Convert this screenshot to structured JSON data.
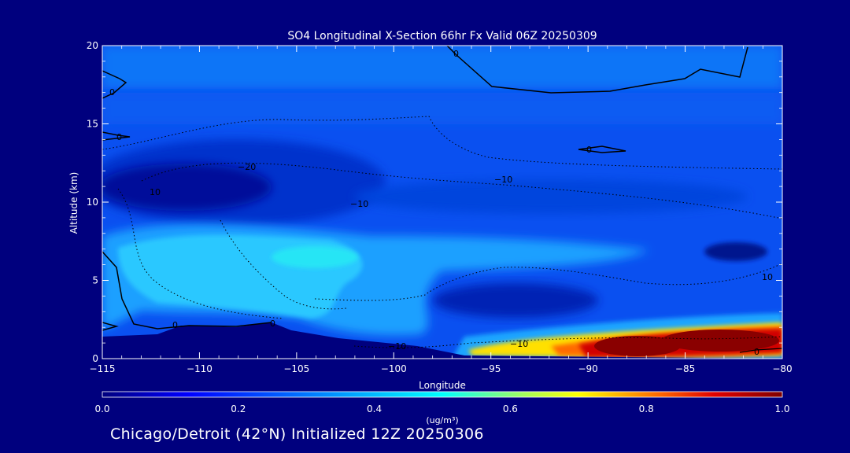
{
  "chart_data": {
    "type": "heatmap",
    "title": "SO4 Longitudinal X-Section 66hr  Fx Valid 06Z 20250309",
    "xlabel": "Longitude",
    "ylabel": "Altitude (km)",
    "xlim": [
      -115,
      -80
    ],
    "ylim": [
      0,
      20
    ],
    "x_ticks": [
      -115,
      -110,
      -105,
      -100,
      -95,
      -90,
      -85,
      -80
    ],
    "x_tick_labels": [
      "−115",
      "−110",
      "−105",
      "−100",
      "−95",
      "−90",
      "−85",
      "−80"
    ],
    "y_ticks": [
      0,
      5,
      10,
      15,
      20
    ],
    "y_tick_labels": [
      "0",
      "5",
      "10",
      "15",
      "20"
    ],
    "colorbar": {
      "min": 0.0,
      "max": 1.0,
      "ticks": [
        0.0,
        0.2,
        0.4,
        0.6,
        0.8,
        1.0
      ],
      "tick_labels": [
        "0.0",
        "0.2",
        "0.4",
        "0.6",
        "0.8",
        "1.0"
      ],
      "units": "(ug/m³)",
      "colors": [
        "#00007e",
        "#0000ff",
        "#0080ff",
        "#00ffff",
        "#80ff80",
        "#ffff00",
        "#ff8000",
        "#ff0000",
        "#7e0000"
      ]
    },
    "features": [
      {
        "name": "near-surface SO4 maximum",
        "lon_range": [
          -92,
          -80
        ],
        "alt_range": [
          0.2,
          1.8
        ],
        "value": 1.0
      },
      {
        "name": "mid-level plume",
        "lon_range": [
          -115,
          -97
        ],
        "alt_range": [
          2.5,
          8
        ],
        "value": 0.35
      },
      {
        "name": "upper-level minimum",
        "lon_range": [
          -115,
          -105
        ],
        "alt_range": [
          9,
          13
        ],
        "value": 0.02
      }
    ],
    "contour_labels": [
      "0",
      "0",
      "0",
      "0",
      "0",
      "0",
      "−20",
      "−10",
      "10",
      "−10",
      "−10",
      "10",
      "0",
      "−10"
    ],
    "grid": false
  },
  "footer": {
    "text": "Chicago/Detroit (42°N) Initialized 12Z 20250306"
  }
}
